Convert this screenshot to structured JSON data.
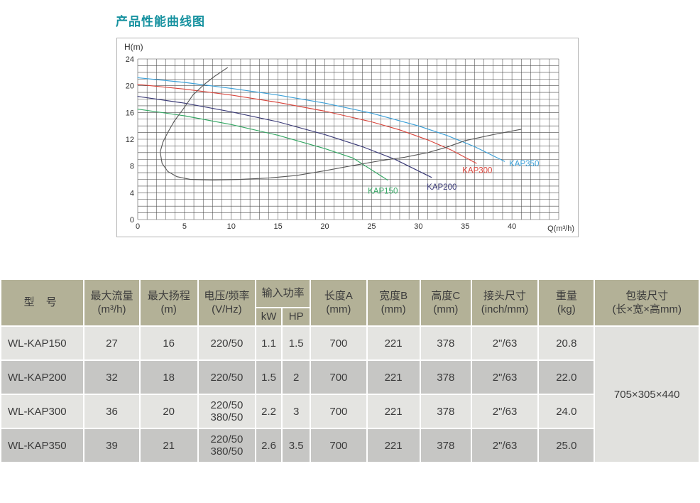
{
  "title": "产品性能曲线图",
  "colors": {
    "title_accent": "#15919f",
    "table_header_bg": "#b3b197",
    "row_light": "#e4e4e1",
    "row_dark": "#c6c6c4",
    "package_cell_bg": "#e1e1de",
    "grid_line": "#4a4a4a"
  },
  "chart_data": {
    "type": "line",
    "title": "",
    "xlabel": "Q(m³/h)",
    "ylabel": "H(m)",
    "xlim": [
      0,
      45
    ],
    "ylim": [
      0,
      24
    ],
    "x_ticks": [
      0,
      5,
      10,
      15,
      20,
      25,
      30,
      35,
      40
    ],
    "y_ticks": [
      0,
      4,
      8,
      12,
      16,
      20,
      24
    ],
    "grid": "on",
    "grid_step": 1,
    "legend_position": "inline-labels",
    "series": [
      {
        "name": "KAP350",
        "color": "#3ba0d8",
        "points": [
          [
            0,
            21.2
          ],
          [
            5,
            20.5
          ],
          [
            10,
            19.6
          ],
          [
            15,
            18.6
          ],
          [
            20,
            17.4
          ],
          [
            25,
            15.9
          ],
          [
            30,
            14.0
          ],
          [
            33,
            12.6
          ],
          [
            36,
            10.9
          ],
          [
            39.2,
            8.7
          ]
        ],
        "label_pos": [
          41.3,
          8.4
        ]
      },
      {
        "name": "KAP300",
        "color": "#d8453c",
        "points": [
          [
            0,
            20.2
          ],
          [
            5,
            19.5
          ],
          [
            10,
            18.6
          ],
          [
            15,
            17.5
          ],
          [
            20,
            16.2
          ],
          [
            25,
            14.6
          ],
          [
            28,
            13.4
          ],
          [
            31,
            11.9
          ],
          [
            33.5,
            10.4
          ],
          [
            36.2,
            8.4
          ]
        ],
        "label_pos": [
          36.3,
          7.4
        ]
      },
      {
        "name": "KAP200",
        "color": "#3c3c78",
        "points": [
          [
            0,
            18.4
          ],
          [
            5,
            17.4
          ],
          [
            10,
            16.1
          ],
          [
            15,
            14.6
          ],
          [
            20,
            12.7
          ],
          [
            24,
            10.9
          ],
          [
            27.5,
            9.0
          ],
          [
            31.4,
            6.3
          ]
        ],
        "label_pos": [
          32.5,
          4.9
        ]
      },
      {
        "name": "KAP150",
        "color": "#36a865",
        "points": [
          [
            0,
            16.5
          ],
          [
            5,
            15.5
          ],
          [
            10,
            14.2
          ],
          [
            15,
            12.6
          ],
          [
            20,
            10.6
          ],
          [
            23,
            9.2
          ],
          [
            26.7,
            5.9
          ]
        ],
        "label_pos": [
          26.2,
          4.3
        ]
      },
      {
        "name": "operating-envelope",
        "color": "#5a5a5a",
        "points": [
          [
            9.6,
            22.7
          ],
          [
            8.2,
            21.4
          ],
          [
            7.1,
            20.2
          ],
          [
            5.9,
            18.6
          ],
          [
            4.9,
            16.6
          ],
          [
            3.9,
            14.7
          ],
          [
            3.2,
            13.0
          ],
          [
            2.7,
            11.6
          ],
          [
            2.4,
            10.1
          ],
          [
            2.6,
            8.4
          ],
          [
            3.2,
            7.2
          ],
          [
            4.2,
            6.4
          ],
          [
            5.6,
            6.0
          ],
          [
            8,
            5.9
          ],
          [
            11,
            6.0
          ],
          [
            14,
            6.2
          ],
          [
            17,
            6.6
          ],
          [
            20,
            7.3
          ],
          [
            22.7,
            8.0
          ],
          [
            26,
            8.8
          ],
          [
            28.5,
            9.3
          ],
          [
            31,
            10.0
          ],
          [
            33,
            10.8
          ],
          [
            35,
            11.8
          ],
          [
            38,
            12.7
          ],
          [
            41,
            13.5
          ]
        ],
        "label_pos": null
      }
    ]
  },
  "table": {
    "columns": [
      {
        "label": "型 号",
        "unit": ""
      },
      {
        "label": "最大流量",
        "unit": "(m³/h)"
      },
      {
        "label": "最大扬程",
        "unit": "(m)"
      },
      {
        "label": "电压/频率",
        "unit": "(V/Hz)"
      },
      {
        "label": "输入功率",
        "sub": [
          "kW",
          "HP"
        ]
      },
      {
        "label": "长度A",
        "unit": "(mm)"
      },
      {
        "label": "宽度B",
        "unit": "(mm)"
      },
      {
        "label": "高度C",
        "unit": "(mm)"
      },
      {
        "label": "接头尺寸",
        "unit": "(inch/mm)"
      },
      {
        "label": "重量",
        "unit": "(kg)"
      },
      {
        "label": "包装尺寸",
        "unit": "(长×宽×高mm)"
      }
    ],
    "rows": [
      {
        "model": "WL-KAP150",
        "max_flow": "27",
        "max_head": "16",
        "voltage": [
          "220/50"
        ],
        "kw": "1.1",
        "hp": "1.5",
        "length_a": "700",
        "width_b": "221",
        "height_c": "378",
        "connector": "2\"/63",
        "weight": "20.8"
      },
      {
        "model": "WL-KAP200",
        "max_flow": "32",
        "max_head": "18",
        "voltage": [
          "220/50"
        ],
        "kw": "1.5",
        "hp": "2",
        "length_a": "700",
        "width_b": "221",
        "height_c": "378",
        "connector": "2\"/63",
        "weight": "22.0"
      },
      {
        "model": "WL-KAP300",
        "max_flow": "36",
        "max_head": "20",
        "voltage": [
          "220/50",
          "380/50"
        ],
        "kw": "2.2",
        "hp": "3",
        "length_a": "700",
        "width_b": "221",
        "height_c": "378",
        "connector": "2\"/63",
        "weight": "24.0"
      },
      {
        "model": "WL-KAP350",
        "max_flow": "39",
        "max_head": "21",
        "voltage": [
          "220/50",
          "380/50"
        ],
        "kw": "2.6",
        "hp": "3.5",
        "length_a": "700",
        "width_b": "221",
        "height_c": "378",
        "connector": "2\"/63",
        "weight": "25.0"
      }
    ],
    "package_size": "705×305×440"
  }
}
